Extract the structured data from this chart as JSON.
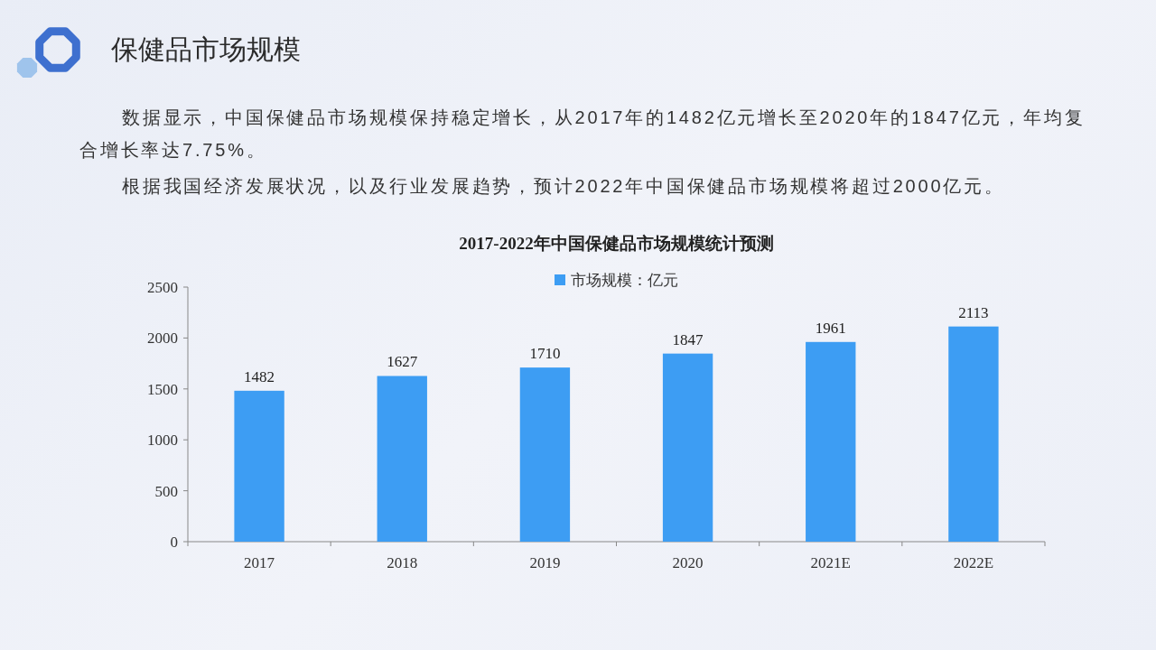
{
  "chart_data": {
    "type": "bar",
    "title": "2017-2022年中国保健品市场规模统计预测",
    "annotations": [
      "保健品市场规模",
      "数据显示，中国保健品市场规模保持稳定增长，从2017年的1482亿元增长至2020年的1847亿元，年均复合增长率达7.75%。",
      "根据我国经济发展状况，以及行业发展趋势，预计2022年中国保健品市场规模将超过2000亿元。"
    ],
    "categories": [
      "2017",
      "2018",
      "2019",
      "2020",
      "2021E",
      "2022E"
    ],
    "series": [
      {
        "name": "市场规模：亿元",
        "color": "#3d9df3",
        "values": [
          1482,
          1627,
          1710,
          1847,
          1961,
          2113
        ]
      }
    ],
    "ylim": [
      0,
      2500
    ],
    "yticks": [
      0,
      500,
      1000,
      1500,
      2000,
      2500
    ],
    "data_labels": true,
    "legend": "top"
  }
}
